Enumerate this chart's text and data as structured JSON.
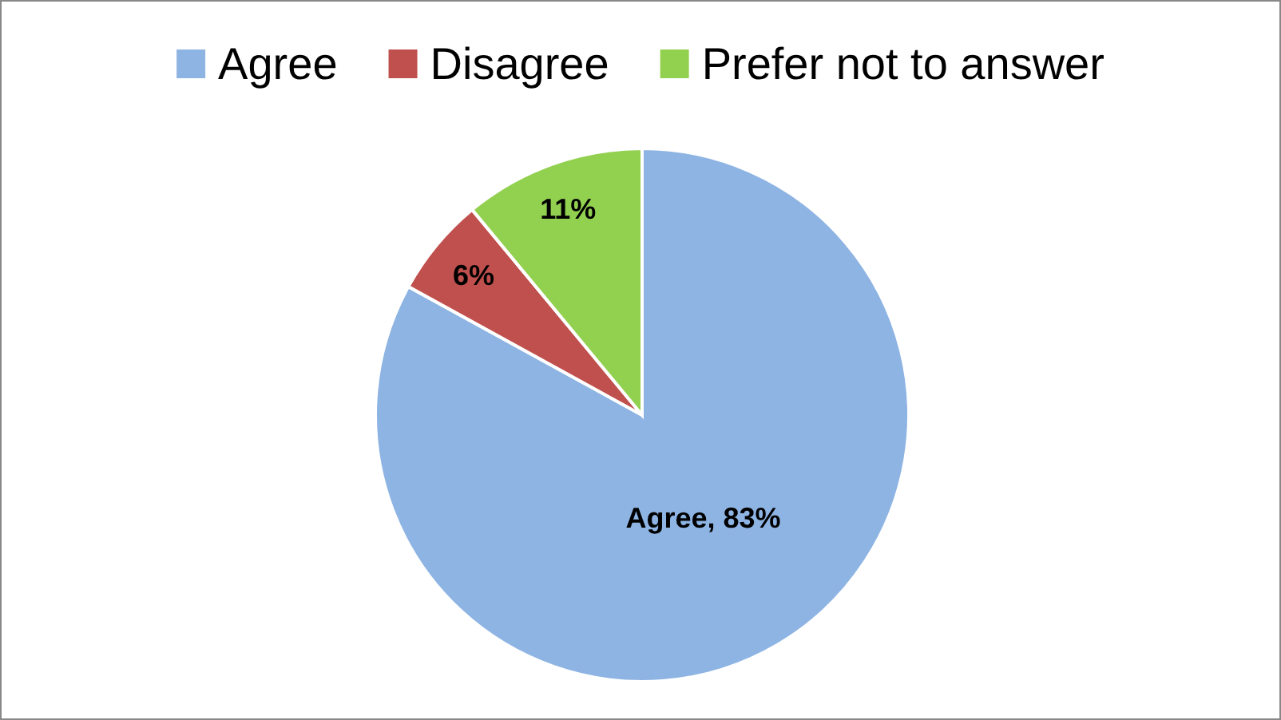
{
  "chart_data": {
    "type": "pie",
    "categories": [
      "Agree",
      "Disagree",
      "Prefer not to answer"
    ],
    "values": [
      83,
      6,
      11
    ],
    "colors": [
      "#8eb4e3",
      "#c0504d",
      "#92d050"
    ],
    "value_labels": [
      "Agree, 83%",
      "6%",
      "11%"
    ],
    "legend": "top"
  }
}
